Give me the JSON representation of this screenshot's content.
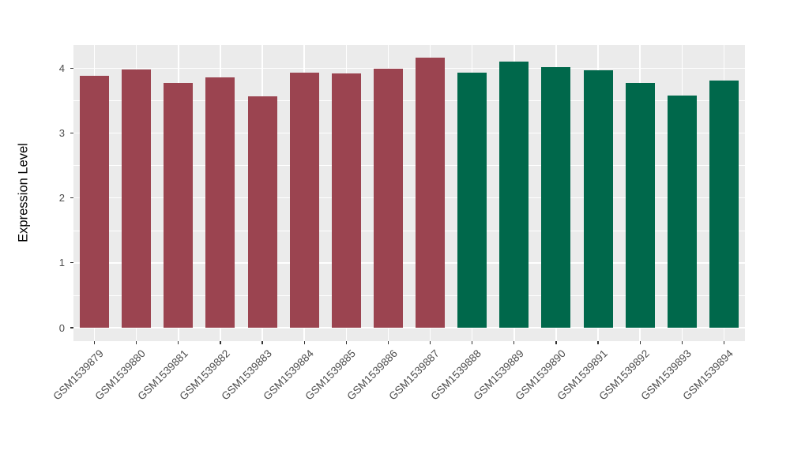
{
  "chart_data": {
    "type": "bar",
    "title": "",
    "xlabel": "",
    "ylabel": "Expression Level",
    "legend": "none",
    "grid": "on",
    "panel_bg": "#EBEBEB",
    "grid_color": "#FFFFFF",
    "tick_label_color": "#4D4D4D",
    "x_tick_angle": 45,
    "y_ticks": [
      0,
      1,
      2,
      3,
      4
    ],
    "y_minor_ticks": [
      0.5,
      1.5,
      2.5,
      3.5
    ],
    "ylim": [
      -0.21,
      4.37
    ],
    "group_colors": {
      "group1": "#9B4450",
      "group2": "#00684B"
    },
    "categories": [
      "GSM1539879",
      "GSM1539880",
      "GSM1539881",
      "GSM1539882",
      "GSM1539883",
      "GSM1539884",
      "GSM1539885",
      "GSM1539886",
      "GSM1539887",
      "GSM1539888",
      "GSM1539889",
      "GSM1539890",
      "GSM1539891",
      "GSM1539892",
      "GSM1539893",
      "GSM1539894"
    ],
    "values": [
      3.88,
      3.98,
      3.77,
      3.86,
      3.57,
      3.94,
      3.92,
      4.0,
      4.16,
      3.93,
      4.11,
      4.02,
      3.97,
      3.77,
      3.58,
      3.81
    ],
    "bars": [
      {
        "label": "GSM1539879",
        "value": 3.88,
        "group": "group1"
      },
      {
        "label": "GSM1539880",
        "value": 3.98,
        "group": "group1"
      },
      {
        "label": "GSM1539881",
        "value": 3.77,
        "group": "group1"
      },
      {
        "label": "GSM1539882",
        "value": 3.86,
        "group": "group1"
      },
      {
        "label": "GSM1539883",
        "value": 3.57,
        "group": "group1"
      },
      {
        "label": "GSM1539884",
        "value": 3.94,
        "group": "group1"
      },
      {
        "label": "GSM1539885",
        "value": 3.92,
        "group": "group1"
      },
      {
        "label": "GSM1539886",
        "value": 4.0,
        "group": "group1"
      },
      {
        "label": "GSM1539887",
        "value": 4.16,
        "group": "group1"
      },
      {
        "label": "GSM1539888",
        "value": 3.93,
        "group": "group2"
      },
      {
        "label": "GSM1539889",
        "value": 4.11,
        "group": "group2"
      },
      {
        "label": "GSM1539890",
        "value": 4.02,
        "group": "group2"
      },
      {
        "label": "GSM1539891",
        "value": 3.97,
        "group": "group2"
      },
      {
        "label": "GSM1539892",
        "value": 3.77,
        "group": "group2"
      },
      {
        "label": "GSM1539893",
        "value": 3.58,
        "group": "group2"
      },
      {
        "label": "GSM1539894",
        "value": 3.81,
        "group": "group2"
      }
    ]
  }
}
